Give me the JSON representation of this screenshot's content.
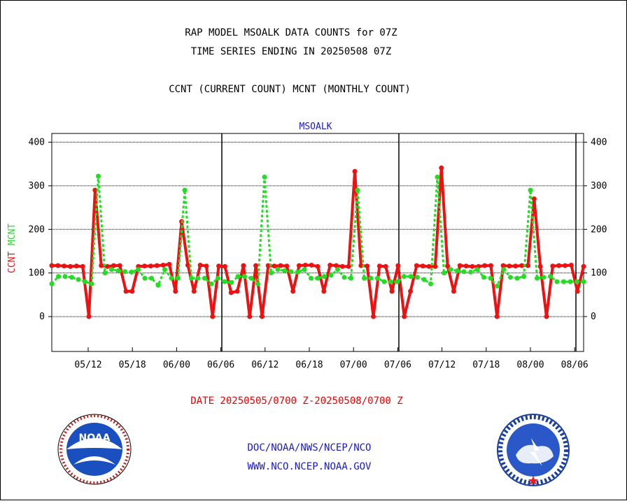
{
  "header": {
    "title_line1": "RAP MODEL MSOALK DATA COUNTS for 07Z",
    "title_line2": "TIME SERIES ENDING IN 20250508 07Z",
    "subtitle": "CCNT (CURRENT COUNT) MCNT (MONTHLY COUNT)"
  },
  "footer": {
    "date_range": "DATE 20250505/0700 Z-20250508/0700 Z",
    "org": "DOC/NOAA/NWS/NCEP/NCO",
    "url": "WWW.NCO.NCEP.NOAA.GOV"
  },
  "logos": {
    "left": {
      "text": "NOAA",
      "icon": "noaa-seal-icon"
    },
    "right": {
      "icon": "nws-seal-icon"
    }
  },
  "colors": {
    "ccnt": "#ee1111",
    "mcnt": "#22dd22",
    "text": "#000000",
    "panel_title": "#1a1acc"
  },
  "chart_data": {
    "type": "line",
    "title": "MSOALK",
    "ylabel_left": [
      "CCNT",
      "MCNT"
    ],
    "ylim": [
      -80,
      420
    ],
    "yticks": [
      0,
      100,
      200,
      300,
      400
    ],
    "xticks": [
      "05/12",
      "05/18",
      "06/00",
      "06/06",
      "06/12",
      "06/18",
      "07/00",
      "07/06",
      "07/12",
      "07/18",
      "08/00",
      "08/06"
    ],
    "grid": true,
    "series": [
      {
        "name": "CCNT",
        "values": [
          117,
          117,
          116,
          115,
          116,
          115,
          0,
          290,
          117,
          115,
          117,
          117,
          58,
          58,
          115,
          116,
          116,
          117,
          118,
          120,
          58,
          218,
          118,
          58,
          118,
          116,
          0,
          116,
          115,
          55,
          58,
          117,
          0,
          117,
          0,
          117,
          116,
          117,
          116,
          58,
          117,
          118,
          118,
          115,
          58,
          118,
          117,
          115,
          115,
          333,
          117,
          116,
          0,
          116,
          115,
          58,
          117,
          0,
          58,
          117,
          116,
          115,
          115,
          341,
          116,
          58,
          117,
          116,
          115,
          115,
          117,
          117,
          0,
          117,
          116,
          116,
          117,
          117,
          270,
          115,
          0,
          116,
          117,
          117,
          118,
          58,
          115
        ]
      },
      {
        "name": "MCNT",
        "values": [
          75,
          92,
          92,
          90,
          85,
          80,
          75,
          322,
          100,
          108,
          105,
          103,
          102,
          108,
          88,
          88,
          72,
          108,
          88,
          88,
          290,
          88,
          88,
          88,
          75,
          88,
          80,
          78,
          92,
          92,
          88,
          75,
          320,
          100,
          108,
          105,
          103,
          102,
          108,
          88,
          88,
          92,
          95,
          108,
          90,
          88,
          290,
          88,
          88,
          88,
          80,
          80,
          80,
          92,
          92,
          90,
          85,
          75,
          320,
          100,
          108,
          105,
          103,
          102,
          108,
          90,
          88,
          70,
          108,
          90,
          88,
          92,
          290,
          88,
          90,
          92,
          80,
          80,
          80,
          80,
          80
        ]
      }
    ]
  }
}
